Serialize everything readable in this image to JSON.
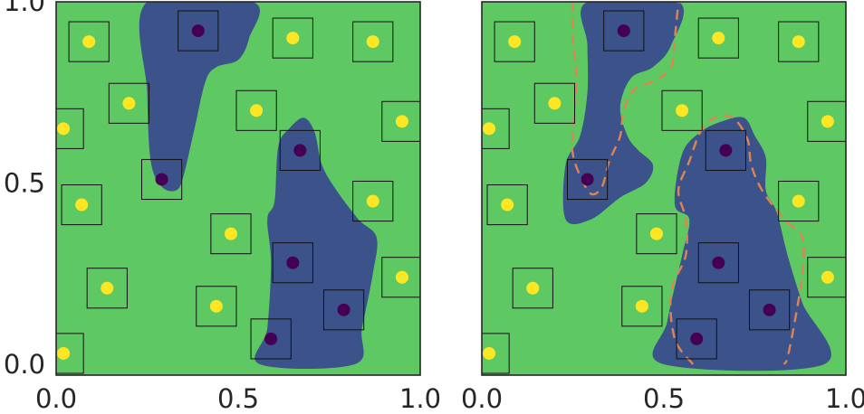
{
  "colors": {
    "class_0_region": "#5ec962",
    "class_1_region": "#3b528b",
    "class_0_point": "#fde725",
    "class_1_point": "#440154",
    "decision_boundary": "#dd8452",
    "axes_frame": "#262626",
    "sample_box": "#111111"
  },
  "chart_data": [
    {
      "type": "scatter",
      "title": "",
      "xlabel": "",
      "ylabel": "",
      "xlim": [
        0.0,
        1.0
      ],
      "ylim": [
        -0.03,
        1.0
      ],
      "x_ticks": [
        "0.0",
        "0.5",
        "1.0"
      ],
      "y_ticks": [
        "0.0",
        "0.5",
        "1.0"
      ],
      "grid": false,
      "point_box_half_width": 0.055,
      "points": [
        {
          "x": 0.39,
          "y": 0.92,
          "class": 1
        },
        {
          "x": 0.29,
          "y": 0.51,
          "class": 1
        },
        {
          "x": 0.67,
          "y": 0.59,
          "class": 1
        },
        {
          "x": 0.65,
          "y": 0.28,
          "class": 1
        },
        {
          "x": 0.79,
          "y": 0.15,
          "class": 1
        },
        {
          "x": 0.59,
          "y": 0.07,
          "class": 1
        },
        {
          "x": 0.09,
          "y": 0.89,
          "class": 0
        },
        {
          "x": 0.65,
          "y": 0.9,
          "class": 0
        },
        {
          "x": 0.87,
          "y": 0.89,
          "class": 0
        },
        {
          "x": 0.2,
          "y": 0.72,
          "class": 0
        },
        {
          "x": 0.55,
          "y": 0.7,
          "class": 0
        },
        {
          "x": 0.02,
          "y": 0.65,
          "class": 0
        },
        {
          "x": 0.95,
          "y": 0.67,
          "class": 0
        },
        {
          "x": 0.07,
          "y": 0.44,
          "class": 0
        },
        {
          "x": 0.48,
          "y": 0.36,
          "class": 0
        },
        {
          "x": 0.87,
          "y": 0.45,
          "class": 0
        },
        {
          "x": 0.14,
          "y": 0.21,
          "class": 0
        },
        {
          "x": 0.44,
          "y": 0.16,
          "class": 0
        },
        {
          "x": 0.95,
          "y": 0.24,
          "class": 0
        },
        {
          "x": 0.02,
          "y": 0.03,
          "class": 0
        }
      ],
      "class_1_regions": [
        [
          [
            0.25,
            1.0
          ],
          [
            0.54,
            1.0
          ],
          [
            0.53,
            0.9
          ],
          [
            0.5,
            0.84
          ],
          [
            0.44,
            0.82
          ],
          [
            0.41,
            0.78
          ],
          [
            0.38,
            0.65
          ],
          [
            0.35,
            0.52
          ],
          [
            0.33,
            0.48
          ],
          [
            0.29,
            0.49
          ],
          [
            0.26,
            0.56
          ],
          [
            0.25,
            0.75
          ]
        ],
        [
          [
            0.6,
            0.45
          ],
          [
            0.61,
            0.6
          ],
          [
            0.64,
            0.65
          ],
          [
            0.68,
            0.68
          ],
          [
            0.71,
            0.64
          ],
          [
            0.73,
            0.55
          ],
          [
            0.77,
            0.48
          ],
          [
            0.83,
            0.4
          ],
          [
            0.88,
            0.35
          ],
          [
            0.87,
            0.25
          ],
          [
            0.84,
            0.1
          ],
          [
            0.82,
            0.0
          ],
          [
            0.56,
            0.0
          ],
          [
            0.58,
            0.1
          ],
          [
            0.59,
            0.28
          ],
          [
            0.58,
            0.4
          ]
        ]
      ],
      "boundary": []
    },
    {
      "type": "scatter",
      "title": "",
      "xlabel": "",
      "ylabel": "",
      "xlim": [
        0.0,
        1.0
      ],
      "ylim": [
        -0.03,
        1.0
      ],
      "x_ticks": [
        "0.0",
        "0.5",
        "1.0"
      ],
      "y_ticks": [
        "0.0",
        "0.5",
        "1.0"
      ],
      "grid": false,
      "point_box_half_width": 0.055,
      "points": [
        {
          "x": 0.39,
          "y": 0.92,
          "class": 1
        },
        {
          "x": 0.29,
          "y": 0.51,
          "class": 1
        },
        {
          "x": 0.67,
          "y": 0.59,
          "class": 1
        },
        {
          "x": 0.65,
          "y": 0.28,
          "class": 1
        },
        {
          "x": 0.79,
          "y": 0.15,
          "class": 1
        },
        {
          "x": 0.59,
          "y": 0.07,
          "class": 1
        },
        {
          "x": 0.09,
          "y": 0.89,
          "class": 0
        },
        {
          "x": 0.65,
          "y": 0.9,
          "class": 0
        },
        {
          "x": 0.87,
          "y": 0.89,
          "class": 0
        },
        {
          "x": 0.2,
          "y": 0.72,
          "class": 0
        },
        {
          "x": 0.55,
          "y": 0.7,
          "class": 0
        },
        {
          "x": 0.02,
          "y": 0.65,
          "class": 0
        },
        {
          "x": 0.95,
          "y": 0.67,
          "class": 0
        },
        {
          "x": 0.07,
          "y": 0.44,
          "class": 0
        },
        {
          "x": 0.48,
          "y": 0.36,
          "class": 0
        },
        {
          "x": 0.87,
          "y": 0.45,
          "class": 0
        },
        {
          "x": 0.14,
          "y": 0.21,
          "class": 0
        },
        {
          "x": 0.44,
          "y": 0.16,
          "class": 0
        },
        {
          "x": 0.95,
          "y": 0.24,
          "class": 0
        },
        {
          "x": 0.02,
          "y": 0.03,
          "class": 0
        }
      ],
      "class_1_regions": [
        [
          [
            0.29,
            1.0
          ],
          [
            0.54,
            1.0
          ],
          [
            0.52,
            0.88
          ],
          [
            0.47,
            0.82
          ],
          [
            0.41,
            0.79
          ],
          [
            0.38,
            0.71
          ],
          [
            0.4,
            0.63
          ],
          [
            0.43,
            0.59
          ],
          [
            0.47,
            0.55
          ],
          [
            0.45,
            0.5
          ],
          [
            0.38,
            0.46
          ],
          [
            0.3,
            0.4
          ],
          [
            0.23,
            0.4
          ],
          [
            0.23,
            0.55
          ],
          [
            0.27,
            0.63
          ],
          [
            0.29,
            0.75
          ],
          [
            0.29,
            0.88
          ]
        ],
        [
          [
            0.53,
            0.44
          ],
          [
            0.55,
            0.58
          ],
          [
            0.6,
            0.64
          ],
          [
            0.66,
            0.67
          ],
          [
            0.72,
            0.68
          ],
          [
            0.75,
            0.63
          ],
          [
            0.78,
            0.57
          ],
          [
            0.78,
            0.48
          ],
          [
            0.81,
            0.42
          ],
          [
            0.84,
            0.3
          ],
          [
            0.88,
            0.17
          ],
          [
            0.94,
            0.0
          ],
          [
            0.5,
            0.0
          ],
          [
            0.51,
            0.12
          ],
          [
            0.55,
            0.3
          ],
          [
            0.57,
            0.4
          ]
        ]
      ],
      "boundary": [
        [
          0.25,
          1.0
        ],
        [
          0.25,
          0.9
        ],
        [
          0.26,
          0.78
        ],
        [
          0.25,
          0.64
        ],
        [
          0.25,
          0.58
        ],
        [
          0.27,
          0.52
        ],
        [
          0.3,
          0.47
        ],
        [
          0.33,
          0.49
        ],
        [
          0.35,
          0.56
        ],
        [
          0.38,
          0.63
        ],
        [
          0.39,
          0.7
        ],
        [
          0.42,
          0.76
        ],
        [
          0.47,
          0.78
        ],
        [
          0.52,
          0.82
        ],
        [
          0.53,
          0.9
        ],
        [
          0.54,
          1.0
        ],
        null,
        [
          0.58,
          0.0
        ],
        [
          0.53,
          0.07
        ],
        [
          0.52,
          0.2
        ],
        [
          0.56,
          0.3
        ],
        [
          0.56,
          0.4
        ],
        [
          0.54,
          0.48
        ],
        [
          0.57,
          0.56
        ],
        [
          0.6,
          0.64
        ],
        [
          0.64,
          0.68
        ],
        [
          0.69,
          0.68
        ],
        [
          0.73,
          0.62
        ],
        [
          0.74,
          0.55
        ],
        [
          0.77,
          0.48
        ],
        [
          0.83,
          0.4
        ],
        [
          0.88,
          0.35
        ],
        [
          0.88,
          0.25
        ],
        [
          0.86,
          0.12
        ],
        [
          0.84,
          0.02
        ],
        [
          0.83,
          0.0
        ]
      ]
    }
  ]
}
